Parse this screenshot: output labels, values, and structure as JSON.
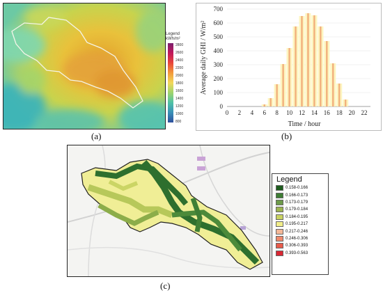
{
  "panel_labels": {
    "a": "(a)",
    "b": "(b)",
    "c": "(c)"
  },
  "legend_a": {
    "title": "Legend",
    "unit": "kWh/m²",
    "ticks": [
      "2800",
      "2600",
      "2400",
      "2200",
      "2000",
      "1800",
      "1600",
      "1400",
      "1200",
      "1000",
      "800"
    ]
  },
  "legend_c": {
    "title": "Legend",
    "items": [
      {
        "label": "0.158-0.166",
        "color": "#1e5c1e"
      },
      {
        "label": "0.166-0.173",
        "color": "#3f7e35"
      },
      {
        "label": "0.173-0.179",
        "color": "#6d9a4a"
      },
      {
        "label": "0.179-0.184",
        "color": "#9db451"
      },
      {
        "label": "0.184-0.195",
        "color": "#c9d261"
      },
      {
        "label": "0.195-0.217",
        "color": "#f2ee8a"
      },
      {
        "label": "0.217-0.246",
        "color": "#f4b898"
      },
      {
        "label": "0.246-0.306",
        "color": "#ef8a6c"
      },
      {
        "label": "0.306-0.393",
        "color": "#e85b4b"
      },
      {
        "label": "0.393-0.563",
        "color": "#d92733"
      }
    ]
  },
  "chart_data": {
    "type": "bar",
    "xlabel": "Time / hour",
    "ylabel": "Average daily GHI / W/m²",
    "ylim": [
      0,
      700
    ],
    "yticks": [
      0,
      100,
      200,
      300,
      400,
      500,
      600,
      700
    ],
    "xlim": [
      0,
      23
    ],
    "xticks": [
      0,
      2,
      4,
      6,
      8,
      10,
      12,
      14,
      16,
      18,
      20,
      22
    ],
    "x": [
      6,
      7,
      8,
      9,
      10,
      11,
      12,
      13,
      14,
      15,
      16,
      17,
      18,
      19
    ],
    "values": [
      15,
      60,
      160,
      305,
      420,
      575,
      650,
      670,
      655,
      575,
      470,
      310,
      165,
      50
    ],
    "bar_color": "#f2b27d",
    "band_color": "#fdf5c0"
  },
  "colors": {
    "map_border": "#222222",
    "road": "#c8c8c8"
  }
}
